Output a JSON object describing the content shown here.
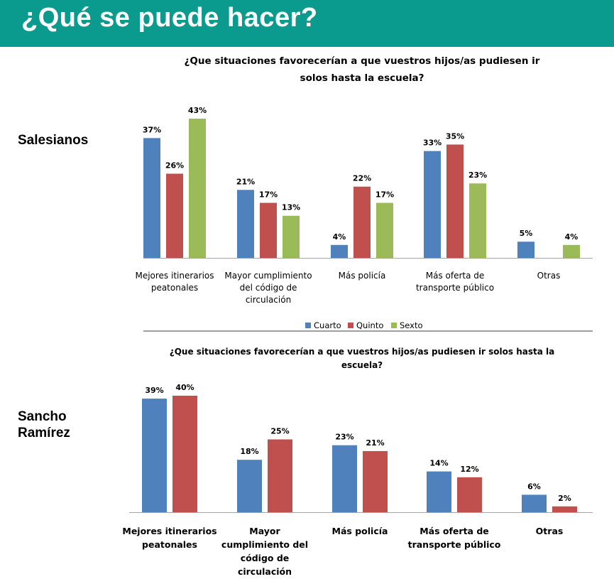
{
  "header": {
    "title": "¿Qué se puede hacer?"
  },
  "groups": {
    "salesianos": "Salesianos",
    "sancho": [
      "Sancho",
      "Ramírez"
    ]
  },
  "colors": {
    "cuarto": "#4f81bd",
    "quinto": "#c0504d",
    "sexto": "#9bbb59",
    "header": "#0a9a8e"
  },
  "chart_data": [
    {
      "type": "bar",
      "title": [
        "¿Que situaciones favorecerían a que vuestros hijos/as  pudiesen ir",
        "solos hasta la escuela?"
      ],
      "categories": [
        [
          "Mejores itinerarios",
          "peatonales"
        ],
        [
          "Mayor cumplimiento",
          "del código de",
          "circulación"
        ],
        [
          "Más policía"
        ],
        [
          "Más oferta de",
          "transporte público"
        ],
        [
          "Otras"
        ]
      ],
      "series": [
        {
          "name": "Cuarto",
          "values": [
            37,
            21,
            4,
            33,
            5
          ]
        },
        {
          "name": "Quinto",
          "values": [
            26,
            17,
            22,
            35,
            null
          ]
        },
        {
          "name": "Sexto",
          "values": [
            43,
            13,
            17,
            23,
            4
          ]
        }
      ],
      "value_suffix": "%",
      "legend": "bottom",
      "grid": false
    },
    {
      "type": "bar",
      "title": [
        "¿Que situaciones favorecerían a que vuestros hijos/as pudiesen ir solos hasta la",
        "escuela?"
      ],
      "categories": [
        [
          "Mejores itinerarios",
          "peatonales"
        ],
        [
          "Mayor",
          "cumplimiento del",
          "código de",
          "circulación"
        ],
        [
          "Más policía"
        ],
        [
          "Más oferta de",
          "transporte público"
        ],
        [
          "Otras"
        ]
      ],
      "series": [
        {
          "values": [
            39,
            18,
            23,
            14,
            6
          ]
        },
        {
          "values": [
            40,
            25,
            21,
            12,
            2
          ]
        }
      ],
      "value_suffix": "%",
      "grid": false
    }
  ]
}
